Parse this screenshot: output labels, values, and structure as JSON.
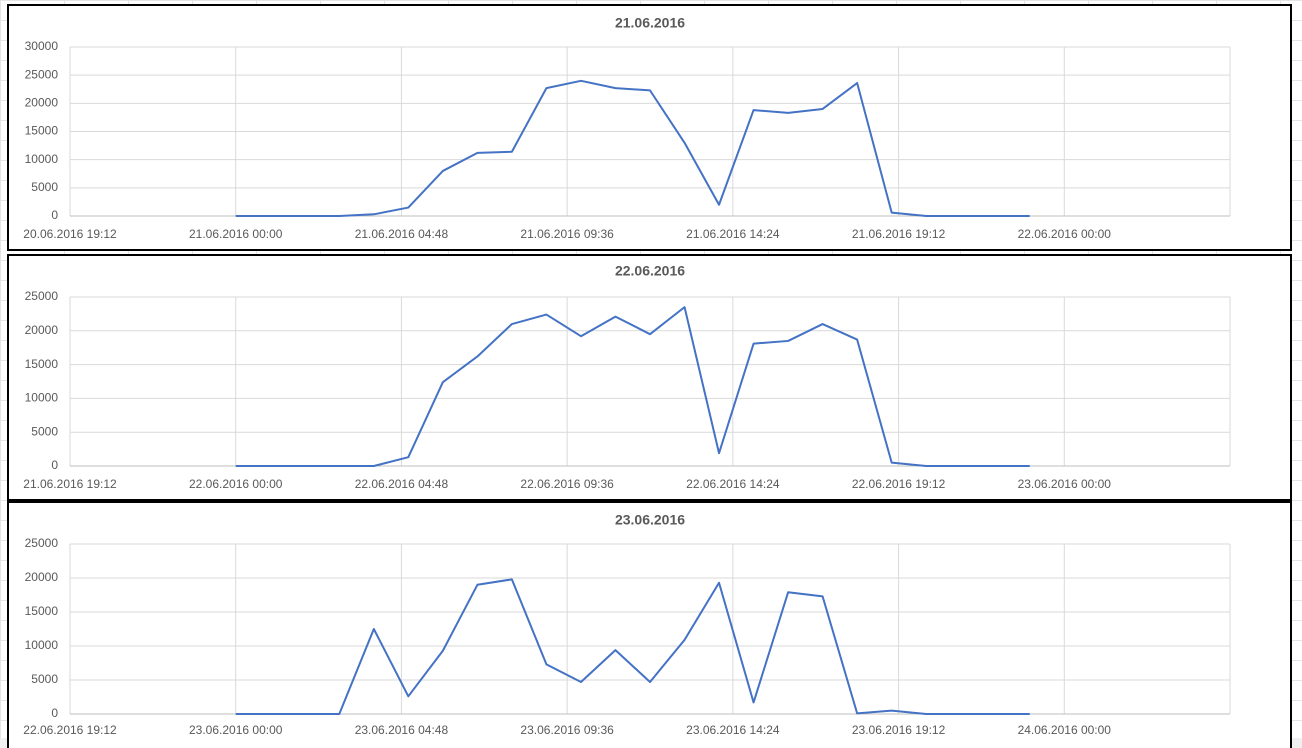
{
  "chart_data": [
    {
      "type": "line",
      "title": "21.06.2016",
      "x": [
        42542,
        42542.0417,
        42542.0833,
        42542.125,
        42542.1667,
        42542.2083,
        42542.25,
        42542.2917,
        42542.3333,
        42542.375,
        42542.4167,
        42542.4583,
        42542.5,
        42542.5417,
        42542.5833,
        42542.625,
        42542.6667,
        42542.7083,
        42542.75,
        42542.7917,
        42542.8333,
        42542.875,
        42542.9167,
        42542.9583
      ],
      "values": [
        0,
        0,
        0,
        0,
        300,
        1500,
        8000,
        11200,
        11400,
        22700,
        24000,
        22700,
        22300,
        13000,
        2000,
        18800,
        18300,
        19000,
        23600,
        600,
        0,
        0,
        0,
        0
      ],
      "color": "#4472c4",
      "xlim": [
        42541.8,
        42543.2
      ],
      "xticks": [
        {
          "value": 42541.8,
          "label": "20.06.2016 19:12"
        },
        {
          "value": 42542,
          "label": "21.06.2016 00:00"
        },
        {
          "value": 42542.2,
          "label": "21.06.2016 04:48"
        },
        {
          "value": 42542.4,
          "label": "21.06.2016 09:36"
        },
        {
          "value": 42542.6,
          "label": "21.06.2016 14:24"
        },
        {
          "value": 42542.8,
          "label": "21.06.2016 19:12"
        },
        {
          "value": 42543,
          "label": "22.06.2016 00:00"
        }
      ],
      "ylim": [
        0,
        30000
      ],
      "yticks": [
        0,
        5000,
        10000,
        15000,
        20000,
        25000,
        30000
      ],
      "grid": true
    },
    {
      "type": "line",
      "title": "22.06.2016",
      "x": [
        42543,
        42543.0417,
        42543.0833,
        42543.125,
        42543.1667,
        42543.2083,
        42543.25,
        42543.2917,
        42543.3333,
        42543.375,
        42543.4167,
        42543.4583,
        42543.5,
        42543.5417,
        42543.5833,
        42543.625,
        42543.6667,
        42543.7083,
        42543.75,
        42543.7917,
        42543.8333,
        42543.875,
        42543.9167,
        42543.9583
      ],
      "values": [
        0,
        0,
        0,
        0,
        0,
        1300,
        12400,
        16200,
        21000,
        22400,
        19200,
        22100,
        19500,
        23500,
        1900,
        18100,
        18500,
        21000,
        18700,
        500,
        0,
        0,
        0,
        0
      ],
      "color": "#4472c4",
      "xlim": [
        42542.8,
        42544.2
      ],
      "xticks": [
        {
          "value": 42542.8,
          "label": "21.06.2016 19:12"
        },
        {
          "value": 42543,
          "label": "22.06.2016 00:00"
        },
        {
          "value": 42543.2,
          "label": "22.06.2016 04:48"
        },
        {
          "value": 42543.4,
          "label": "22.06.2016 09:36"
        },
        {
          "value": 42543.6,
          "label": "22.06.2016 14:24"
        },
        {
          "value": 42543.8,
          "label": "22.06.2016 19:12"
        },
        {
          "value": 42544,
          "label": "23.06.2016 00:00"
        }
      ],
      "ylim": [
        0,
        25000
      ],
      "yticks": [
        0,
        5000,
        10000,
        15000,
        20000,
        25000
      ],
      "grid": true
    },
    {
      "type": "line",
      "title": "23.06.2016",
      "x": [
        42544,
        42544.0417,
        42544.0833,
        42544.125,
        42544.1667,
        42544.2083,
        42544.25,
        42544.2917,
        42544.3333,
        42544.375,
        42544.4167,
        42544.4583,
        42544.5,
        42544.5417,
        42544.5833,
        42544.625,
        42544.6667,
        42544.7083,
        42544.75,
        42544.7917,
        42544.8333,
        42544.875,
        42544.9167,
        42544.9583
      ],
      "values": [
        0,
        0,
        0,
        0,
        12500,
        2600,
        9300,
        19000,
        19800,
        7300,
        4700,
        9400,
        4700,
        10900,
        19300,
        1700,
        17900,
        17300,
        100,
        500,
        0,
        0,
        0,
        0
      ],
      "color": "#4472c4",
      "xlim": [
        42543.8,
        42545.2
      ],
      "xticks": [
        {
          "value": 42543.8,
          "label": "22.06.2016 19:12"
        },
        {
          "value": 42544,
          "label": "23.06.2016 00:00"
        },
        {
          "value": 42544.2,
          "label": "23.06.2016 04:48"
        },
        {
          "value": 42544.4,
          "label": "23.06.2016 09:36"
        },
        {
          "value": 42544.6,
          "label": "23.06.2016 14:24"
        },
        {
          "value": 42544.8,
          "label": "23.06.2016 19:12"
        },
        {
          "value": 42545,
          "label": "24.06.2016 00:00"
        }
      ],
      "ylim": [
        0,
        25000
      ],
      "yticks": [
        0,
        5000,
        10000,
        15000,
        20000,
        25000
      ],
      "grid": true
    }
  ]
}
